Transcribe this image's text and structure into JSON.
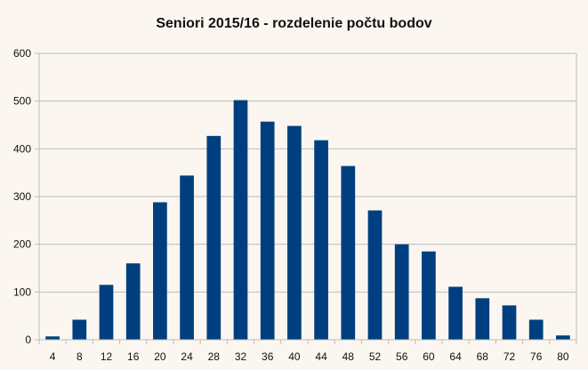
{
  "chart_data": {
    "type": "bar",
    "title": "Seniori 2015/16 - rozdelenie počtu bodov",
    "xlabel": "",
    "ylabel": "",
    "categories": [
      "4",
      "8",
      "12",
      "16",
      "20",
      "24",
      "28",
      "32",
      "36",
      "40",
      "44",
      "48",
      "52",
      "56",
      "60",
      "64",
      "68",
      "72",
      "76",
      "80"
    ],
    "series": [
      {
        "values": [
          7,
          42,
          115,
          160,
          288,
          344,
          427,
          502,
          457,
          448,
          418,
          364,
          271,
          200,
          185,
          111,
          87,
          72,
          42,
          9
        ]
      }
    ],
    "ylim": [
      0,
      600
    ],
    "yticks": [
      0,
      100,
      200,
      300,
      400,
      500,
      600
    ],
    "grid": true,
    "legend": "none",
    "colors": {
      "bar": "#003f7f",
      "grid": "#bdbdbd",
      "background": "#fbf6f0"
    }
  }
}
